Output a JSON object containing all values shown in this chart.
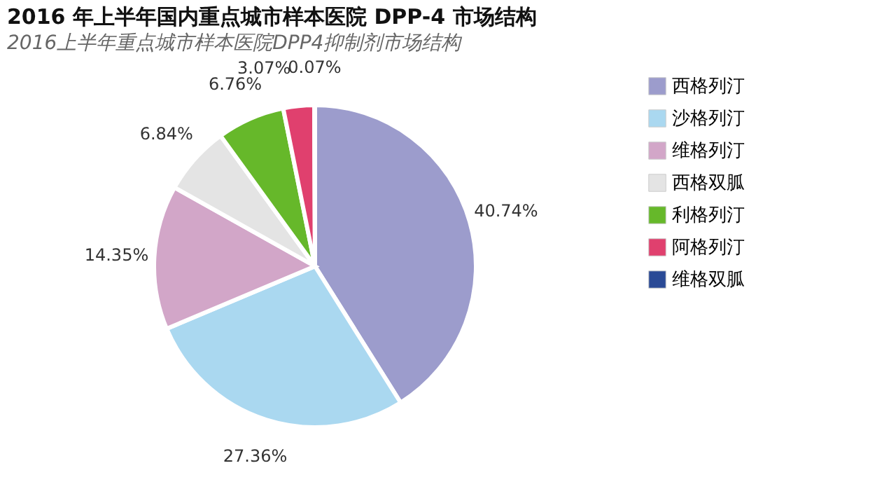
{
  "chart_data": {
    "type": "pie",
    "title": "2016 年上半年国内重点城市样本医院 DPP-4 市场结构",
    "subtitle": "2016上半年重点城市样本医院DPP4抑制剂市场结构",
    "categories": [
      "西格列汀",
      "沙格列汀",
      "维格列汀",
      "西格双胍",
      "利格列汀",
      "阿格列汀",
      "维格双胍"
    ],
    "values": [
      40.74,
      27.36,
      14.35,
      6.84,
      6.76,
      3.07,
      0.07
    ],
    "value_labels": [
      "40.74%",
      "27.36%",
      "14.35%",
      "6.84%",
      "6.76%",
      "3.07%",
      "0.07%"
    ],
    "colors": [
      "#9c9ccc",
      "#aad8f0",
      "#d2a6c8",
      "#e4e4e4",
      "#66b82a",
      "#e0406e",
      "#2a4a96"
    ],
    "legend": "right"
  }
}
